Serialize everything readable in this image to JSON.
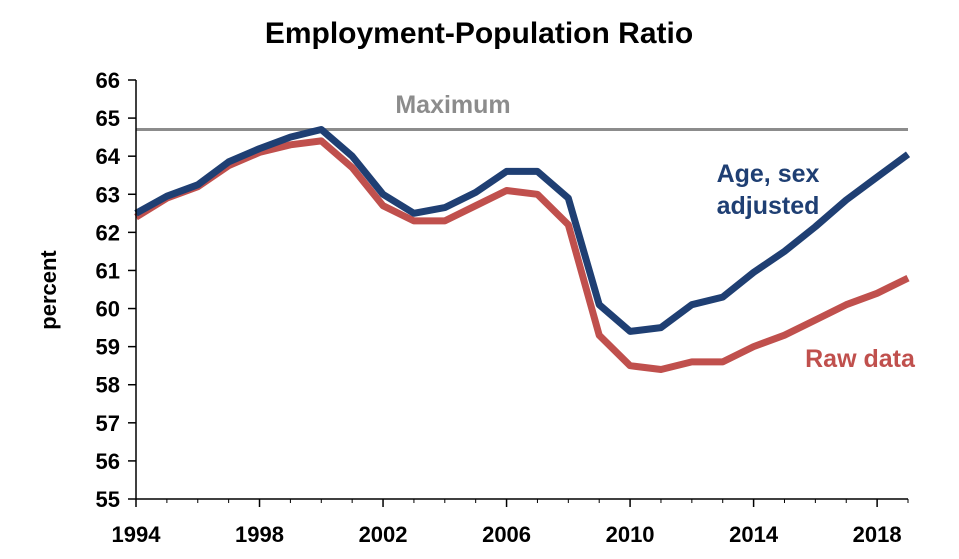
{
  "chart_data": {
    "type": "line",
    "title": "Employment-Population Ratio",
    "xlabel": "",
    "ylabel": "percent",
    "xlim": [
      1994,
      2019
    ],
    "ylim": [
      55,
      66
    ],
    "x_ticks": [
      "1994",
      "1998",
      "2002",
      "2006",
      "2010",
      "2014",
      "2018"
    ],
    "y_ticks": [
      "55",
      "56",
      "57",
      "58",
      "59",
      "60",
      "61",
      "62",
      "63",
      "64",
      "65",
      "66"
    ],
    "reference_line": {
      "label": "Maximum",
      "value": 64.7,
      "color": "#8c8c8c"
    },
    "x": [
      1994,
      1995,
      1996,
      1997,
      1998,
      1999,
      2000,
      2001,
      2002,
      2003,
      2004,
      2005,
      2006,
      2007,
      2008,
      2009,
      2010,
      2011,
      2012,
      2013,
      2014,
      2015,
      2016,
      2017,
      2018,
      2019
    ],
    "series": [
      {
        "name": "Age, sex adjusted",
        "label_lines": [
          "Age, sex",
          "adjusted"
        ],
        "color": "#1f3f73",
        "values": [
          62.5,
          62.95,
          63.25,
          63.85,
          64.2,
          64.5,
          64.7,
          64.0,
          63.0,
          62.5,
          62.65,
          63.05,
          63.6,
          63.6,
          62.9,
          60.1,
          59.4,
          59.5,
          60.1,
          60.3,
          60.95,
          61.5,
          62.15,
          62.85,
          63.45,
          64.05
        ]
      },
      {
        "name": "Raw data",
        "label_lines": [
          "Raw data"
        ],
        "color": "#c0504d",
        "values": [
          62.4,
          62.9,
          63.2,
          63.75,
          64.1,
          64.3,
          64.4,
          63.7,
          62.7,
          62.3,
          62.3,
          62.7,
          63.1,
          63.0,
          62.2,
          59.3,
          58.5,
          58.4,
          58.6,
          58.6,
          59.0,
          59.3,
          59.7,
          60.1,
          60.4,
          60.8
        ]
      }
    ],
    "grid": false,
    "legend": "inline labels"
  }
}
